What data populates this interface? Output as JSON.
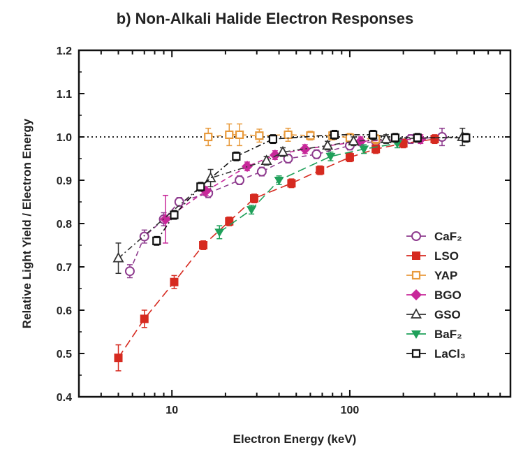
{
  "chart_data": {
    "type": "scatter",
    "title": "b) Non-Alkali Halide Electron Responses",
    "xlabel": "Electron Energy (keV)",
    "ylabel": "Relative Light Yield / Electron Energy",
    "xscale": "log",
    "xlim": [
      3,
      800
    ],
    "ylim": [
      0.4,
      1.2
    ],
    "x_ticks": [
      10,
      100
    ],
    "x_tick_labels": [
      "10",
      "100"
    ],
    "y_ticks": [
      0.4,
      0.5,
      0.6,
      0.7,
      0.8,
      0.9,
      1.0,
      1.1,
      1.2
    ],
    "y_tick_labels": [
      "0.4",
      "0.5",
      "0.6",
      "0.7",
      "0.8",
      "0.9",
      "1.0",
      "1.1",
      "1.2"
    ],
    "reference_line": {
      "y": 1.0,
      "style": "dotted"
    },
    "legend_position": "bottom-right",
    "series": [
      {
        "name": "CaF₂",
        "color": "#8e3b8e",
        "marker": "circle-open",
        "line": "dash",
        "x": [
          5.8,
          7,
          9,
          11,
          16,
          24,
          32,
          45,
          65,
          100,
          140,
          220,
          330
        ],
        "y": [
          0.69,
          0.77,
          0.81,
          0.85,
          0.87,
          0.9,
          0.92,
          0.95,
          0.96,
          0.98,
          0.99,
          0.995,
          1.0
        ],
        "err": [
          0.015,
          0.015,
          0.015,
          0.01,
          0.01,
          0.01,
          0.01,
          0.01,
          0.01,
          0.01,
          0.01,
          0.01,
          0.02
        ]
      },
      {
        "name": "LSO",
        "color": "#d62a20",
        "marker": "square-filled",
        "line": "longdash",
        "x": [
          5,
          7,
          10.3,
          15,
          21,
          29,
          47,
          68,
          100,
          140,
          200,
          300
        ],
        "y": [
          0.49,
          0.58,
          0.665,
          0.75,
          0.805,
          0.858,
          0.893,
          0.923,
          0.953,
          0.972,
          0.985,
          0.995
        ],
        "err": [
          0.03,
          0.02,
          0.015,
          0.01,
          0.01,
          0.01,
          0.01,
          0.01,
          0.01,
          0.01,
          0.01,
          0.01
        ]
      },
      {
        "name": "YAP",
        "color": "#e89a3c",
        "marker": "square-open",
        "line": "dash",
        "x": [
          16,
          21,
          24,
          31,
          45,
          60,
          80,
          100,
          140
        ],
        "y": [
          1.0,
          1.005,
          1.005,
          1.003,
          1.005,
          1.003,
          1.003,
          0.998,
          0.995
        ],
        "err": [
          0.02,
          0.025,
          0.025,
          0.015,
          0.015,
          0.01,
          0.01,
          0.01,
          0.01
        ]
      },
      {
        "name": "BGO",
        "color": "#c8289a",
        "marker": "diamond-filled",
        "line": "dash",
        "x": [
          9.2,
          15.5,
          26.5,
          38,
          56,
          115,
          250
        ],
        "y": [
          0.81,
          0.875,
          0.932,
          0.958,
          0.972,
          0.99,
          0.995
        ],
        "err": [
          0.055,
          0.01,
          0.01,
          0.01,
          0.01,
          0.01,
          0.01
        ]
      },
      {
        "name": "GSO",
        "color": "#333333",
        "marker": "triangle-open",
        "line": "dashdot",
        "x": [
          5,
          16.5,
          34,
          42,
          75,
          105,
          160,
          430
        ],
        "y": [
          0.72,
          0.905,
          0.945,
          0.965,
          0.98,
          0.99,
          0.995,
          1.0
        ],
        "err": [
          0.035,
          0.02,
          0.01,
          0.01,
          0.01,
          0.01,
          0.01,
          0.02
        ]
      },
      {
        "name": "BaF₂",
        "color": "#1fa05a",
        "marker": "triangle-down-filled",
        "line": "longdash",
        "x": [
          18.5,
          28,
          40,
          78,
          120,
          185
        ],
        "y": [
          0.78,
          0.832,
          0.9,
          0.955,
          0.972,
          0.985
        ],
        "err": [
          0.015,
          0.01,
          0.01,
          0.01,
          0.01,
          0.01
        ]
      },
      {
        "name": "LaCl₃",
        "color": "#111111",
        "marker": "square-open",
        "line": "dashdot",
        "x": [
          8.2,
          10.3,
          14.5,
          23,
          37,
          82,
          135,
          180,
          240,
          450
        ],
        "y": [
          0.76,
          0.82,
          0.885,
          0.955,
          0.995,
          1.005,
          1.005,
          0.998,
          0.998,
          0.998
        ],
        "err": [
          0.01,
          0.01,
          0.01,
          0.01,
          0.01,
          0.01,
          0.01,
          0.01,
          0.01,
          0.01
        ]
      }
    ]
  }
}
